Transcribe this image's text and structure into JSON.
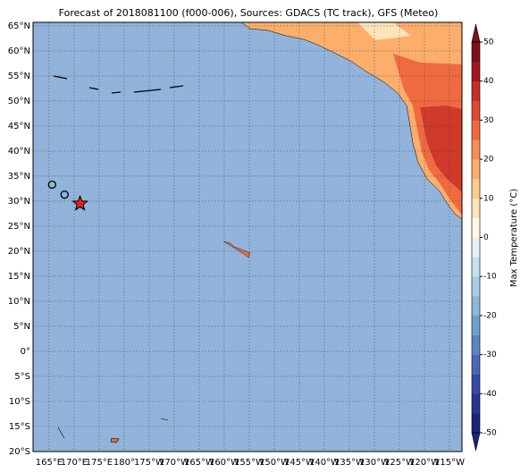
{
  "chart_data": {
    "type": "map",
    "title": "Forecast of 2018081100 (f000-006), Sources: GDACS (TC track), GFS (Meteo)",
    "xlim": [
      161.8,
      247.5
    ],
    "ylim": [
      -20,
      65.7
    ],
    "xticks": [
      {
        "value": 165,
        "label": "165°E"
      },
      {
        "value": 170,
        "label": "170°E"
      },
      {
        "value": 175,
        "label": "175°E"
      },
      {
        "value": 180,
        "label": "180°"
      },
      {
        "value": 185,
        "label": "175°W"
      },
      {
        "value": 190,
        "label": "170°W"
      },
      {
        "value": 195,
        "label": "165°W"
      },
      {
        "value": 200,
        "label": "160°W"
      },
      {
        "value": 205,
        "label": "155°W"
      },
      {
        "value": 210,
        "label": "150°W"
      },
      {
        "value": 215,
        "label": "145°W"
      },
      {
        "value": 220,
        "label": "140°W"
      },
      {
        "value": 225,
        "label": "135°W"
      },
      {
        "value": 230,
        "label": "130°W"
      },
      {
        "value": 235,
        "label": "125°W"
      },
      {
        "value": 240,
        "label": "120°W"
      },
      {
        "value": 245,
        "label": "115°W"
      }
    ],
    "yticks": [
      {
        "value": 65,
        "label": "65°N"
      },
      {
        "value": 60,
        "label": "60°N"
      },
      {
        "value": 55,
        "label": "55°N"
      },
      {
        "value": 50,
        "label": "50°N"
      },
      {
        "value": 45,
        "label": "45°N"
      },
      {
        "value": 40,
        "label": "40°N"
      },
      {
        "value": 35,
        "label": "35°N"
      },
      {
        "value": 30,
        "label": "30°N"
      },
      {
        "value": 25,
        "label": "25°N"
      },
      {
        "value": 20,
        "label": "20°N"
      },
      {
        "value": 15,
        "label": "15°N"
      },
      {
        "value": 10,
        "label": "10°N"
      },
      {
        "value": 5,
        "label": "5°N"
      },
      {
        "value": 0,
        "label": "0°"
      },
      {
        "value": -5,
        "label": "5°S"
      },
      {
        "value": -10,
        "label": "10°S"
      },
      {
        "value": -15,
        "label": "15°S"
      },
      {
        "value": -20,
        "label": "20°S"
      }
    ],
    "grid": true,
    "track": {
      "lon": [
        165.6,
        168.1
      ],
      "lat": [
        33.3,
        31.3
      ]
    },
    "position": {
      "lon": 171.2,
      "lat": 29.5,
      "color": "#e8201c"
    },
    "colorbar": {
      "label": "Max Temperature (°C)",
      "lim": [
        -50,
        50
      ],
      "ticks": [
        -50,
        -40,
        -30,
        -20,
        -10,
        0,
        10,
        20,
        30,
        40,
        50
      ],
      "colors": [
        "#1a237e",
        "#283593",
        "#3949ab",
        "#4b68b8",
        "#5b86c4",
        "#6f9fcf",
        "#8cb6da",
        "#a9cce5",
        "#c6e0ee",
        "#e3f1f7",
        "#fff7e6",
        "#fee5b8",
        "#fdcb8a",
        "#fcae6b",
        "#f98e52",
        "#ef6a40",
        "#de4a31",
        "#c62f26",
        "#a8161e",
        "#800f1a"
      ]
    }
  }
}
